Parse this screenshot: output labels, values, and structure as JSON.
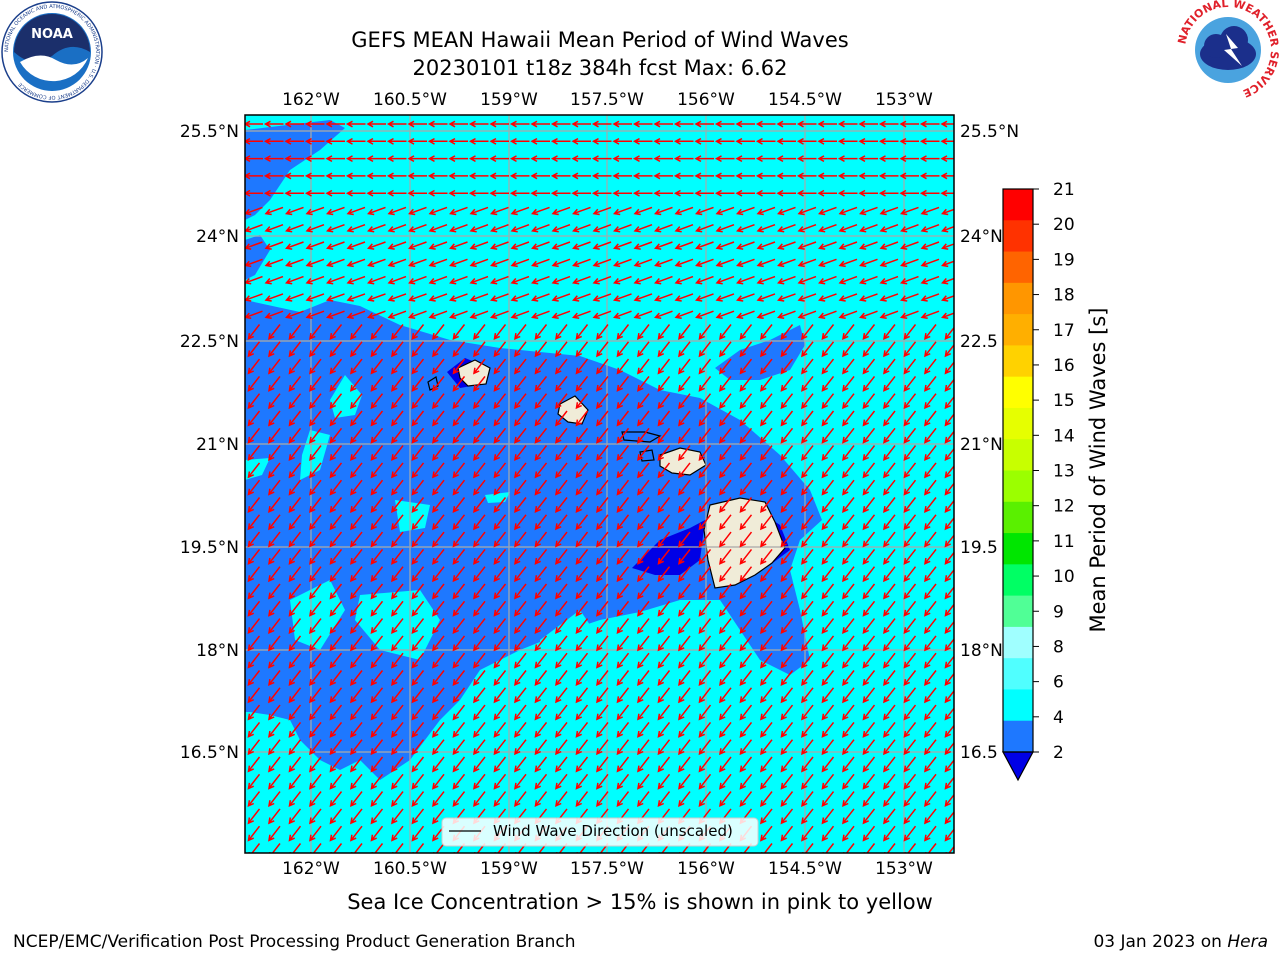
{
  "title": {
    "line1": "GEFS MEAN Hawaii Mean Period of Wind Waves",
    "line2": "20230101 t18z 384h fcst   Max: 6.62"
  },
  "map": {
    "lon_ticks": [
      "162°W",
      "160.5°W",
      "159°W",
      "157.5°W",
      "156°W",
      "154.5°W",
      "153°W"
    ],
    "lat_ticks": [
      "25.5°N",
      "24°N",
      "22.5°N",
      "21°N",
      "19.5°N",
      "18°N",
      "16.5°N"
    ],
    "lat_ticks_right": [
      "25.5°N",
      "24°N",
      "22.5",
      "21°N",
      "19.5",
      "18°N",
      "16.5"
    ],
    "legend_label": "Wind Wave Direction (unscaled)",
    "ocean_color_light": "#00ffff",
    "ocean_color_mid": "#1e78ff",
    "ocean_color_dark": "#0000e6",
    "land_color": "#f0ecd8",
    "arrow_color": "#ff0000"
  },
  "colorbar": {
    "label": "Mean Period of Wind Waves [s]",
    "ticks": [
      "21",
      "20",
      "19",
      "18",
      "17",
      "16",
      "15",
      "14",
      "13",
      "12",
      "11",
      "10",
      "9",
      "8",
      "6",
      "4",
      "2"
    ],
    "colors": [
      "#ff0000",
      "#ff3200",
      "#ff6400",
      "#ff9600",
      "#ffaf00",
      "#ffd200",
      "#ffff00",
      "#e6ff00",
      "#c8ff00",
      "#9bff00",
      "#5af000",
      "#00e600",
      "#00ff64",
      "#50ff96",
      "#a0ffff",
      "#50ffff",
      "#00ffff",
      "#1e78ff"
    ],
    "under_color": "#0000e6"
  },
  "note": "Sea Ice Concentration > 15% is shown in pink to yellow",
  "footer": {
    "left": "NCEP/EMC/Verification Post Processing Product Generation Branch",
    "right_prefix": "03 Jan 2023 on ",
    "right_host": "Hera"
  },
  "logos": {
    "noaa_text": "NOAA",
    "noaa_ring": "NATIONAL OCEANIC AND ATMOSPHERIC ADMINISTRATION · U.S. DEPARTMENT OF COMMERCE",
    "nws_ring": "NATIONAL WEATHER SERVICE"
  }
}
